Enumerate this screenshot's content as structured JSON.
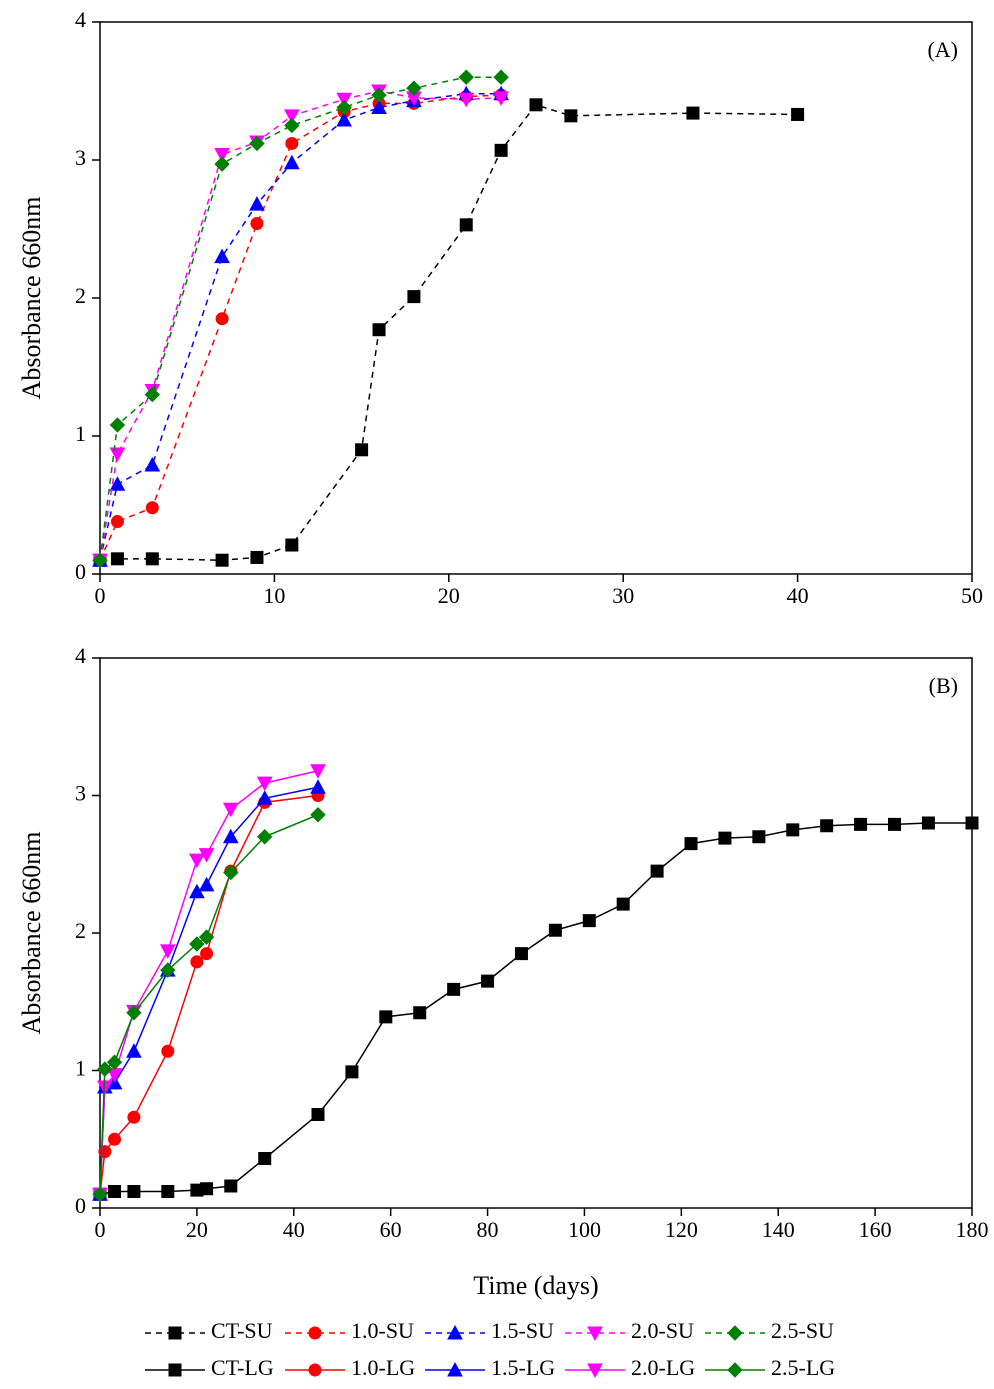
{
  "chart_data": [
    {
      "type": "line",
      "annotation": "(A)",
      "ylabel": "Absorbance 660nm",
      "xlim": [
        0,
        50
      ],
      "xticks": [
        0,
        10,
        20,
        30,
        40,
        50
      ],
      "ylim": [
        0,
        4
      ],
      "yticks": [
        0,
        1,
        2,
        3,
        4
      ],
      "series": [
        {
          "name": "CT-SU",
          "color": "#000000",
          "marker": "square",
          "linestyle": "dashed",
          "x": [
            0,
            1,
            3,
            7,
            9,
            11,
            15,
            16,
            18,
            21,
            23,
            25,
            27,
            34,
            40
          ],
          "values": [
            0.1,
            0.11,
            0.11,
            0.1,
            0.12,
            0.21,
            0.9,
            1.77,
            2.01,
            2.53,
            3.07,
            3.4,
            3.32,
            3.34,
            3.33
          ]
        },
        {
          "name": "1.0-SU",
          "color": "#ff0000",
          "marker": "circle",
          "linestyle": "dashed",
          "x": [
            0,
            1,
            3,
            7,
            9,
            11,
            14,
            16,
            18,
            21,
            23
          ],
          "values": [
            0.1,
            0.38,
            0.48,
            1.85,
            2.54,
            3.12,
            3.35,
            3.41,
            3.41,
            3.46,
            3.47
          ]
        },
        {
          "name": "1.5-SU",
          "color": "#0000ff",
          "marker": "triangle-up",
          "linestyle": "dashed",
          "x": [
            0,
            1,
            3,
            7,
            9,
            11,
            14,
            16,
            18,
            21,
            23
          ],
          "values": [
            0.1,
            0.65,
            0.79,
            2.3,
            2.68,
            2.98,
            3.29,
            3.38,
            3.43,
            3.48,
            3.48
          ]
        },
        {
          "name": "2.0-SU",
          "color": "#ff00ff",
          "marker": "triangle-down",
          "linestyle": "dashed",
          "x": [
            0,
            1,
            3,
            7,
            9,
            11,
            14,
            16,
            18,
            21,
            23
          ],
          "values": [
            0.1,
            0.87,
            1.33,
            3.04,
            3.13,
            3.32,
            3.44,
            3.5,
            3.45,
            3.44,
            3.45
          ]
        },
        {
          "name": "2.5-SU",
          "color": "#008000",
          "marker": "diamond",
          "linestyle": "dashed",
          "x": [
            0,
            1,
            3,
            7,
            9,
            11,
            14,
            16,
            18,
            21,
            23
          ],
          "values": [
            0.1,
            1.08,
            1.3,
            2.97,
            3.12,
            3.25,
            3.38,
            3.47,
            3.52,
            3.6,
            3.6
          ]
        }
      ]
    },
    {
      "type": "line",
      "annotation": "(B)",
      "ylabel": "Absorbance 660nm",
      "xlabel": "Time (days)",
      "xlim": [
        0,
        180
      ],
      "xticks": [
        0,
        20,
        40,
        60,
        80,
        100,
        120,
        140,
        160,
        180
      ],
      "ylim": [
        0,
        4
      ],
      "yticks": [
        0,
        1,
        2,
        3,
        4
      ],
      "series": [
        {
          "name": "CT-LG",
          "color": "#000000",
          "marker": "square",
          "linestyle": "solid",
          "x": [
            0,
            3,
            7,
            14,
            20,
            22,
            27,
            34,
            45,
            52,
            59,
            66,
            73,
            80,
            87,
            94,
            101,
            108,
            115,
            122,
            129,
            136,
            143,
            150,
            157,
            164,
            171,
            180
          ],
          "values": [
            0.1,
            0.12,
            0.12,
            0.12,
            0.13,
            0.14,
            0.16,
            0.36,
            0.68,
            0.99,
            1.39,
            1.42,
            1.59,
            1.65,
            1.85,
            2.02,
            2.09,
            2.21,
            2.45,
            2.65,
            2.69,
            2.7,
            2.75,
            2.78,
            2.79,
            2.79,
            2.8,
            2.8
          ]
        },
        {
          "name": "1.0-LG",
          "color": "#ff0000",
          "marker": "circle",
          "linestyle": "solid",
          "x": [
            0,
            1,
            3,
            7,
            14,
            20,
            22,
            27,
            34,
            45
          ],
          "values": [
            0.1,
            0.41,
            0.5,
            0.66,
            1.14,
            1.79,
            1.85,
            2.45,
            2.95,
            3.0
          ]
        },
        {
          "name": "1.5-LG",
          "color": "#0000ff",
          "marker": "triangle-up",
          "linestyle": "solid",
          "x": [
            0,
            1,
            3,
            7,
            14,
            20,
            22,
            27,
            34,
            45
          ],
          "values": [
            0.1,
            0.88,
            0.91,
            1.14,
            1.73,
            2.3,
            2.35,
            2.7,
            2.98,
            3.06
          ]
        },
        {
          "name": "2.0-LG",
          "color": "#ff00ff",
          "marker": "triangle-down",
          "linestyle": "solid",
          "x": [
            0,
            1,
            3,
            7,
            14,
            20,
            22,
            27,
            34,
            45
          ],
          "values": [
            0.1,
            0.88,
            0.97,
            1.43,
            1.87,
            2.53,
            2.57,
            2.9,
            3.09,
            3.18
          ]
        },
        {
          "name": "2.5-LG",
          "color": "#008000",
          "marker": "diamond",
          "linestyle": "solid",
          "x": [
            0,
            1,
            3,
            7,
            14,
            20,
            22,
            27,
            34,
            45
          ],
          "values": [
            0.1,
            1.01,
            1.06,
            1.42,
            1.73,
            1.92,
            1.97,
            2.44,
            2.7,
            2.86
          ]
        }
      ]
    }
  ]
}
